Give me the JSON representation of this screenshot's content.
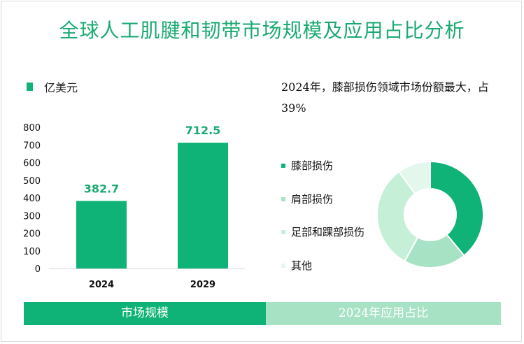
{
  "title": "全球人工肌腱和韧带市场规模及应用占比分析",
  "unit_label": "亿美元",
  "colors": {
    "primary": "#0fb377",
    "title": "#1aaa72",
    "light_green": "#a8e2c4",
    "pale_green": "#c6efd8",
    "palest_green": "#e4f7ec"
  },
  "headline": "2024年，膝部损伤领域市场份额最大，占39%",
  "footer": {
    "left_label": "市场规模",
    "right_label": "2024年应用占比"
  },
  "chart_data": [
    {
      "type": "bar",
      "categories": [
        "2024",
        "2029"
      ],
      "values": [
        382.7,
        712.5
      ],
      "value_labels": [
        "382.7",
        "712.5"
      ],
      "ylim": [
        0,
        800
      ],
      "yticks": [
        0,
        100,
        200,
        300,
        400,
        500,
        600,
        700,
        800
      ],
      "color": "#0fb377"
    },
    {
      "type": "pie",
      "donut": true,
      "legend_position": "left",
      "labels": [
        "膝部损伤",
        "肩部损伤",
        "足部和踝部损伤",
        "其他"
      ],
      "values": [
        39,
        19,
        32,
        10
      ],
      "colors": [
        "#0fb377",
        "#a8e2c4",
        "#c6efd8",
        "#e4f7ec"
      ]
    }
  ]
}
